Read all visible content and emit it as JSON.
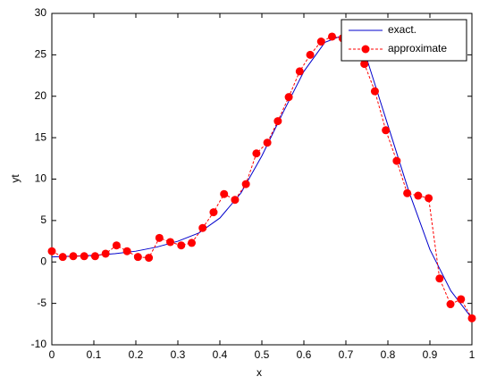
{
  "chart_data": {
    "type": "line",
    "xlabel": "x",
    "ylabel": "yt",
    "xlim": [
      0,
      1
    ],
    "ylim": [
      -10,
      30
    ],
    "xticks": [
      0,
      0.1,
      0.2,
      0.3,
      0.4,
      0.5,
      0.6,
      0.7,
      0.8,
      0.9,
      1
    ],
    "yticks": [
      -10,
      -5,
      0,
      5,
      10,
      15,
      20,
      25,
      30
    ],
    "grid": false,
    "legend": "top-right",
    "series": [
      {
        "name": "exact.",
        "color": "#0000cc",
        "style": "solid",
        "marker": false,
        "x": [
          0,
          0.05,
          0.1,
          0.15,
          0.2,
          0.25,
          0.3,
          0.35,
          0.4,
          0.45,
          0.5,
          0.55,
          0.6,
          0.65,
          0.7,
          0.725,
          0.75,
          0.8,
          0.85,
          0.9,
          0.95,
          1
        ],
        "values": [
          0.6,
          0.7,
          0.8,
          1.0,
          1.3,
          1.8,
          2.5,
          3.5,
          5.3,
          8.3,
          12.8,
          18.0,
          23.0,
          26.5,
          27.5,
          27.0,
          24.5,
          16.5,
          8.5,
          1.5,
          -3.5,
          -6.8
        ]
      },
      {
        "name": "approximate",
        "color": "#ff0000",
        "style": "dashed",
        "marker": true,
        "x": [
          0,
          0.026,
          0.051,
          0.077,
          0.103,
          0.128,
          0.154,
          0.179,
          0.205,
          0.231,
          0.256,
          0.282,
          0.308,
          0.333,
          0.359,
          0.385,
          0.41,
          0.436,
          0.462,
          0.487,
          0.513,
          0.538,
          0.564,
          0.59,
          0.615,
          0.641,
          0.667,
          0.692,
          0.718,
          0.744,
          0.769,
          0.795,
          0.821,
          0.846,
          0.872,
          0.897,
          0.923,
          0.949,
          0.974,
          1
        ],
        "values": [
          1.3,
          0.6,
          0.7,
          0.7,
          0.7,
          1.0,
          2.0,
          1.3,
          0.6,
          0.5,
          2.9,
          2.4,
          2.0,
          2.3,
          4.1,
          6.0,
          8.2,
          7.5,
          9.4,
          13.1,
          14.4,
          17.0,
          19.9,
          23.0,
          25.0,
          26.6,
          27.2,
          27.0,
          26.8,
          23.9,
          20.6,
          15.9,
          12.2,
          8.3,
          8.0,
          7.7,
          -2.0,
          -5.1,
          -4.5,
          -6.8
        ]
      }
    ]
  }
}
